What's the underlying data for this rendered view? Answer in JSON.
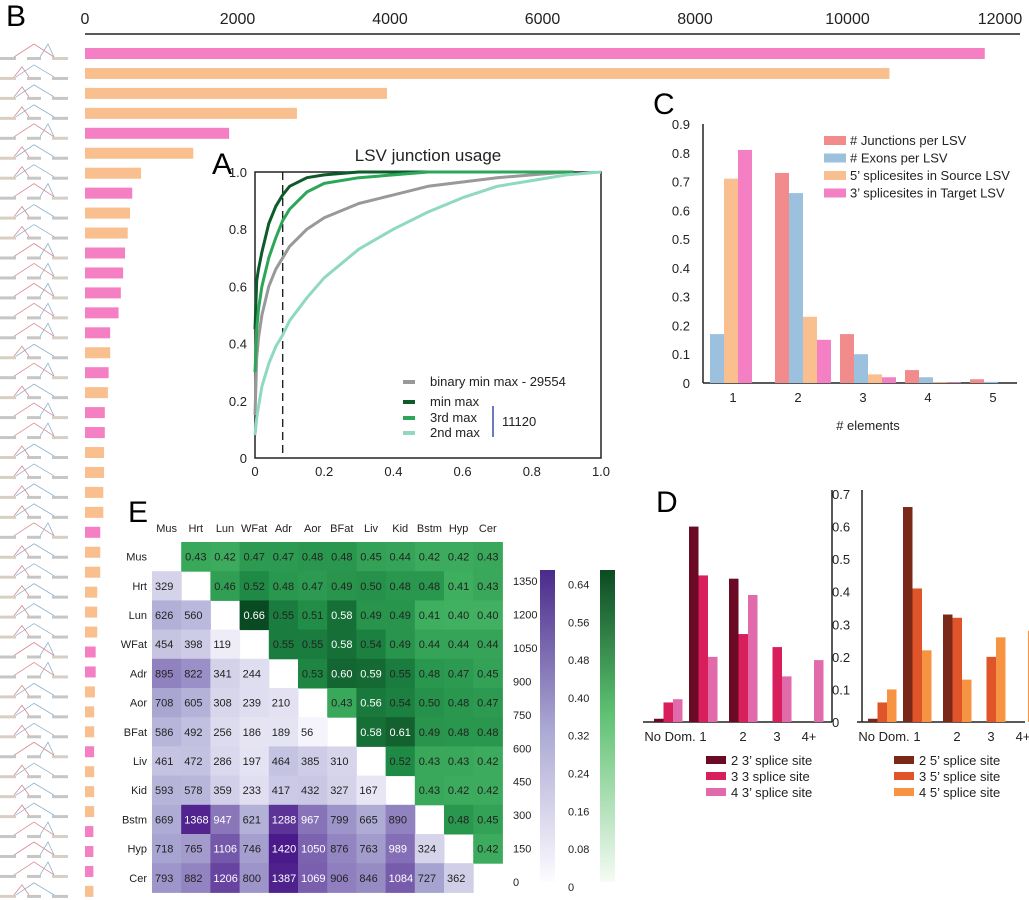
{
  "panel_labels": {
    "A": "A",
    "B": "B",
    "C": "C",
    "D": "D",
    "E": "E"
  },
  "colors": {
    "pink": "#f47fc3",
    "orange": "#f9bf8e",
    "axis": "#222222"
  },
  "chart_data": [
    {
      "id": "B",
      "type": "bar",
      "orientation": "horizontal",
      "title": "",
      "xlabel": "",
      "ylabel": "",
      "xlim": [
        0,
        12000
      ],
      "xticks": [
        "0",
        "2000",
        "4000",
        "6000",
        "8000",
        "10000",
        "12000"
      ],
      "xtick_values": [
        0,
        2000,
        4000,
        6000,
        8000,
        10000,
        12000
      ],
      "axis_position": "top",
      "category_icon": "lsv-splicegraph-icon",
      "bars": [
        {
          "value": 11800,
          "type": "target"
        },
        {
          "value": 10550,
          "type": "source"
        },
        {
          "value": 3960,
          "type": "source"
        },
        {
          "value": 2780,
          "type": "source"
        },
        {
          "value": 1890,
          "type": "target"
        },
        {
          "value": 1420,
          "type": "source"
        },
        {
          "value": 735,
          "type": "source"
        },
        {
          "value": 620,
          "type": "target"
        },
        {
          "value": 590,
          "type": "source"
        },
        {
          "value": 560,
          "type": "source"
        },
        {
          "value": 525,
          "type": "target"
        },
        {
          "value": 500,
          "type": "target"
        },
        {
          "value": 470,
          "type": "target"
        },
        {
          "value": 440,
          "type": "target"
        },
        {
          "value": 330,
          "type": "target"
        },
        {
          "value": 330,
          "type": "source"
        },
        {
          "value": 310,
          "type": "target"
        },
        {
          "value": 300,
          "type": "source"
        },
        {
          "value": 260,
          "type": "target"
        },
        {
          "value": 260,
          "type": "target"
        },
        {
          "value": 250,
          "type": "source"
        },
        {
          "value": 250,
          "type": "source"
        },
        {
          "value": 240,
          "type": "source"
        },
        {
          "value": 240,
          "type": "source"
        },
        {
          "value": 200,
          "type": "target"
        },
        {
          "value": 200,
          "type": "source"
        },
        {
          "value": 200,
          "type": "source"
        },
        {
          "value": 160,
          "type": "source"
        },
        {
          "value": 160,
          "type": "source"
        },
        {
          "value": 160,
          "type": "source"
        },
        {
          "value": 140,
          "type": "target"
        },
        {
          "value": 140,
          "type": "target"
        },
        {
          "value": 130,
          "type": "source"
        },
        {
          "value": 120,
          "type": "source"
        },
        {
          "value": 120,
          "type": "source"
        },
        {
          "value": 120,
          "type": "target"
        },
        {
          "value": 120,
          "type": "source"
        },
        {
          "value": 120,
          "type": "source"
        },
        {
          "value": 120,
          "type": "source"
        },
        {
          "value": 110,
          "type": "target"
        },
        {
          "value": 110,
          "type": "target"
        },
        {
          "value": 110,
          "type": "target"
        },
        {
          "value": 110,
          "type": "source"
        }
      ]
    },
    {
      "id": "A",
      "type": "line",
      "title": "LSV junction usage",
      "xlabel": "",
      "ylabel": "",
      "xlim": [
        0,
        1.0
      ],
      "ylim": [
        0,
        1.0
      ],
      "xticks": [
        "0",
        "0.2",
        "0.4",
        "0.6",
        "0.8",
        "1.0"
      ],
      "xtick_values": [
        0,
        0.2,
        0.4,
        0.6,
        0.8,
        1.0
      ],
      "yticks": [
        "0",
        "0.2",
        "0.4",
        "0.6",
        "0.8",
        "1.0"
      ],
      "ytick_values": [
        0,
        0.2,
        0.4,
        0.6,
        0.8,
        1.0
      ],
      "vline": {
        "x": 0.08,
        "style": "dashed"
      },
      "legend_position": "bottom-right",
      "legend_bracket_label": "11120",
      "series": [
        {
          "name": "binary min max - 29554",
          "color": "#999999",
          "x": [
            0,
            0.005,
            0.01,
            0.02,
            0.04,
            0.06,
            0.08,
            0.1,
            0.15,
            0.2,
            0.3,
            0.4,
            0.5,
            0.6,
            0.7,
            0.8,
            0.9
          ],
          "y": [
            0.15,
            0.35,
            0.42,
            0.5,
            0.6,
            0.66,
            0.7,
            0.74,
            0.8,
            0.84,
            0.89,
            0.92,
            0.95,
            0.965,
            0.98,
            0.99,
            1.0
          ]
        },
        {
          "name": "min max",
          "color": "#0f5a2a",
          "x": [
            0,
            0.005,
            0.01,
            0.02,
            0.04,
            0.06,
            0.08,
            0.1,
            0.15,
            0.2,
            0.3,
            0.5,
            0.7,
            0.92
          ],
          "y": [
            0.45,
            0.62,
            0.66,
            0.72,
            0.82,
            0.88,
            0.92,
            0.95,
            0.98,
            0.99,
            1.0,
            1.0,
            1.0,
            1.0
          ]
        },
        {
          "name": "3rd max",
          "color": "#2ea65a",
          "x": [
            0,
            0.005,
            0.01,
            0.02,
            0.04,
            0.06,
            0.08,
            0.1,
            0.15,
            0.2,
            0.3,
            0.4,
            0.5,
            0.7,
            0.92
          ],
          "y": [
            0.3,
            0.45,
            0.52,
            0.6,
            0.7,
            0.77,
            0.83,
            0.87,
            0.93,
            0.96,
            0.98,
            0.99,
            1.0,
            1.0,
            1.0
          ]
        },
        {
          "name": "2nd max",
          "color": "#8fd9c0",
          "x": [
            0,
            0.005,
            0.01,
            0.02,
            0.04,
            0.06,
            0.08,
            0.1,
            0.15,
            0.2,
            0.3,
            0.4,
            0.5,
            0.6,
            0.7,
            0.8,
            0.9,
            1.0
          ],
          "y": [
            0.08,
            0.14,
            0.18,
            0.25,
            0.33,
            0.39,
            0.43,
            0.48,
            0.56,
            0.63,
            0.73,
            0.8,
            0.86,
            0.91,
            0.95,
            0.97,
            0.99,
            1.0
          ]
        }
      ]
    },
    {
      "id": "C",
      "type": "bar",
      "title": "",
      "xlabel": "# elements",
      "ylabel": "",
      "categories": [
        "1",
        "2",
        "3",
        "4",
        "5"
      ],
      "ylim": [
        0,
        0.9
      ],
      "yticks": [
        "0",
        "0.1",
        "0.2",
        "0.3",
        "0.4",
        "0.5",
        "0.6",
        "0.7",
        "0.8",
        "0.9"
      ],
      "ytick_values": [
        0,
        0.1,
        0.2,
        0.3,
        0.4,
        0.5,
        0.6,
        0.7,
        0.8,
        0.9
      ],
      "legend_position": "top-right",
      "series": [
        {
          "name": "# Junctions per LSV",
          "color": "#f28b8c",
          "values": [
            0.0,
            0.73,
            0.17,
            0.045,
            0.013
          ]
        },
        {
          "name": "# Exons per LSV",
          "color": "#9cc1de",
          "values": [
            0.17,
            0.66,
            0.1,
            0.02,
            0.004
          ]
        },
        {
          "name": "5’ splicesites in Source LSV",
          "color": "#f9bf8e",
          "values": [
            0.71,
            0.23,
            0.03,
            0.003,
            0.0
          ]
        },
        {
          "name": "3’ splicesites in Target LSV",
          "color": "#f47fc3",
          "values": [
            0.81,
            0.15,
            0.02,
            0.002,
            0.0
          ]
        }
      ]
    },
    {
      "id": "D-left",
      "type": "bar",
      "title": "",
      "xlabel": "",
      "ylabel": "",
      "categories": [
        "No Dom.",
        "1",
        "2",
        "3",
        "4+"
      ],
      "ylim": [
        0,
        0.7
      ],
      "legend_position": "bottom",
      "series": [
        {
          "name": "2 3’ splice site",
          "color": "#6b0a25",
          "values": [
            0.01,
            0.6,
            0.44,
            0.0,
            0.0
          ]
        },
        {
          "name": "3 3 splice site",
          "color": "#d81e5b",
          "values": [
            0.06,
            0.45,
            0.27,
            0.23,
            0.0
          ]
        },
        {
          "name": "4 3’ splice site",
          "color": "#e06aaa",
          "values": [
            0.07,
            0.2,
            0.39,
            0.14,
            0.19
          ]
        }
      ]
    },
    {
      "id": "D-right",
      "type": "bar",
      "title": "",
      "xlabel": "",
      "ylabel": "",
      "categories": [
        "No Dom.",
        "1",
        "2",
        "3",
        "4+"
      ],
      "ylim": [
        0,
        0.7
      ],
      "yticks": [
        "0",
        "0.1",
        "0.2",
        "0.3",
        "0.4",
        "0.5",
        "0.6",
        "0.7"
      ],
      "ytick_values": [
        0,
        0.1,
        0.2,
        0.3,
        0.4,
        0.5,
        0.6,
        0.7
      ],
      "legend_position": "bottom",
      "series": [
        {
          "name": "2 5’ splice site",
          "color": "#7a2818",
          "values": [
            0.01,
            0.66,
            0.33,
            0.0,
            0.0
          ]
        },
        {
          "name": "3 5’ splice site",
          "color": "#e0542a",
          "values": [
            0.06,
            0.41,
            0.32,
            0.2,
            0.0
          ]
        },
        {
          "name": "4 5’ splice site",
          "color": "#f79444",
          "values": [
            0.1,
            0.22,
            0.13,
            0.26,
            0.28
          ]
        }
      ]
    },
    {
      "id": "E",
      "type": "heatmap",
      "title": "",
      "labels": [
        "Mus",
        "Hrt",
        "Lun",
        "WFat",
        "Adr",
        "Aor",
        "BFat",
        "Liv",
        "Kid",
        "Bstm",
        "Hyp",
        "Cer"
      ],
      "upper_triangle_label": "green",
      "lower_triangle_label": "purple",
      "upper": [
        [
          null,
          0.43,
          0.42,
          0.47,
          0.47,
          0.48,
          0.48,
          0.45,
          0.44,
          0.42,
          0.42,
          0.43
        ],
        [
          null,
          null,
          0.46,
          0.52,
          0.48,
          0.47,
          0.49,
          0.5,
          0.48,
          0.48,
          0.41,
          0.43
        ],
        [
          null,
          null,
          null,
          0.66,
          0.55,
          0.51,
          0.58,
          0.49,
          0.49,
          0.41,
          0.4,
          0.4
        ],
        [
          null,
          null,
          null,
          null,
          0.55,
          0.55,
          0.58,
          0.54,
          0.49,
          0.44,
          0.44,
          0.44
        ],
        [
          null,
          null,
          null,
          null,
          null,
          0.53,
          0.6,
          0.59,
          0.55,
          0.48,
          0.47,
          0.45
        ],
        [
          null,
          null,
          null,
          null,
          null,
          null,
          0.43,
          0.56,
          0.54,
          0.5,
          0.48,
          0.47
        ],
        [
          null,
          null,
          null,
          null,
          null,
          null,
          null,
          0.58,
          0.61,
          0.49,
          0.48,
          0.48
        ],
        [
          null,
          null,
          null,
          null,
          null,
          null,
          null,
          null,
          0.52,
          0.43,
          0.43,
          0.42
        ],
        [
          null,
          null,
          null,
          null,
          null,
          null,
          null,
          null,
          null,
          0.43,
          0.42,
          0.42
        ],
        [
          null,
          null,
          null,
          null,
          null,
          null,
          null,
          null,
          null,
          null,
          0.48,
          0.45
        ],
        [
          null,
          null,
          null,
          null,
          null,
          null,
          null,
          null,
          null,
          null,
          null,
          0.42
        ],
        [
          null,
          null,
          null,
          null,
          null,
          null,
          null,
          null,
          null,
          null,
          null,
          null
        ]
      ],
      "lower": [
        [
          null,
          null,
          null,
          null,
          null,
          null,
          null,
          null,
          null,
          null,
          null,
          null
        ],
        [
          329,
          null,
          null,
          null,
          null,
          null,
          null,
          null,
          null,
          null,
          null,
          null
        ],
        [
          626,
          560,
          null,
          null,
          null,
          null,
          null,
          null,
          null,
          null,
          null,
          null
        ],
        [
          454,
          398,
          119,
          null,
          null,
          null,
          null,
          null,
          null,
          null,
          null,
          null
        ],
        [
          895,
          822,
          341,
          244,
          null,
          null,
          null,
          null,
          null,
          null,
          null,
          null
        ],
        [
          708,
          605,
          308,
          239,
          210,
          null,
          null,
          null,
          null,
          null,
          null,
          null
        ],
        [
          586,
          492,
          256,
          186,
          189,
          56,
          null,
          null,
          null,
          null,
          null,
          null
        ],
        [
          461,
          472,
          286,
          197,
          464,
          385,
          310,
          null,
          null,
          null,
          null,
          null
        ],
        [
          593,
          578,
          359,
          233,
          417,
          432,
          327,
          167,
          null,
          null,
          null,
          null
        ],
        [
          669,
          1368,
          947,
          621,
          1288,
          967,
          799,
          665,
          890,
          null,
          null,
          null
        ],
        [
          718,
          765,
          1106,
          746,
          1420,
          1050,
          876,
          763,
          989,
          324,
          null,
          null
        ],
        [
          793,
          882,
          1206,
          800,
          1387,
          1069,
          906,
          846,
          1084,
          727,
          362,
          null
        ]
      ],
      "colorbar_purple": {
        "range": [
          0,
          1400
        ],
        "ticks": [
          "0",
          "150",
          "300",
          "450",
          "600",
          "750",
          "900",
          "1050",
          "1200",
          "1350"
        ],
        "tick_values": [
          0,
          150,
          300,
          450,
          600,
          750,
          900,
          1050,
          1200,
          1350
        ]
      },
      "colorbar_green": {
        "range": [
          0,
          0.66
        ],
        "ticks": [
          "0",
          "0.08",
          "0.16",
          "0.24",
          "0.32",
          "0.40",
          "0.48",
          "0.56",
          "0.64"
        ],
        "tick_values": [
          0,
          0.08,
          0.16,
          0.24,
          0.32,
          0.4,
          0.48,
          0.56,
          0.64
        ]
      }
    }
  ]
}
